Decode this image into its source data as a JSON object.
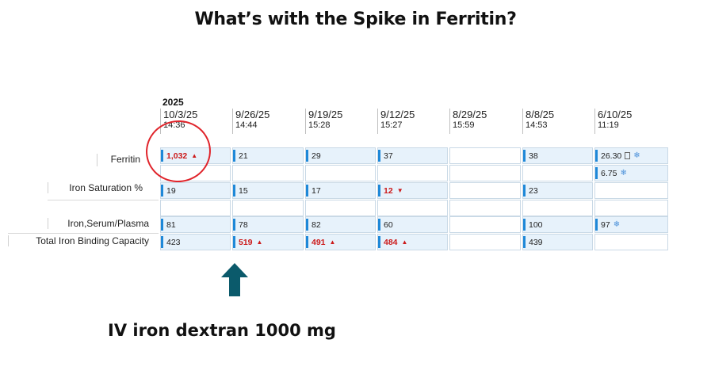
{
  "title": "What’s with the Spike in Ferritin?",
  "year": "2025",
  "columns": [
    {
      "date": "10/3/25",
      "time": "14:36"
    },
    {
      "date": "9/26/25",
      "time": "14:44"
    },
    {
      "date": "9/19/25",
      "time": "15:28"
    },
    {
      "date": "9/12/25",
      "time": "15:27"
    },
    {
      "date": "8/29/25",
      "time": "15:59"
    },
    {
      "date": "8/8/25",
      "time": "14:53"
    },
    {
      "date": "6/10/25",
      "time": "11:19"
    }
  ],
  "rows": {
    "ferritin": {
      "label": "Ferritin",
      "values": [
        "1,032",
        "21",
        "29",
        "37",
        "",
        "38",
        "26.30"
      ],
      "extra": "6.75"
    },
    "iron_saturation": {
      "label": "Iron Saturation %",
      "values": [
        "19",
        "15",
        "17",
        "12",
        "",
        "23",
        ""
      ]
    },
    "iron_serum": {
      "label": "Iron,Serum/Plasma",
      "values": [
        "81",
        "78",
        "82",
        "60",
        "",
        "100",
        "97"
      ]
    },
    "tibc": {
      "label": "Total Iron Binding Capacity",
      "values": [
        "423",
        "519",
        "491",
        "484",
        "",
        "439",
        ""
      ]
    }
  },
  "flags": {
    "high": "▲",
    "low": "▼",
    "snowflake": "❄"
  },
  "colors": {
    "abnormal": "#cc1a1a",
    "accent_bar": "#1e88d8",
    "cell_bg": "#e7f2fb",
    "circle": "#e0242b",
    "arrow": "#0b5a6b"
  },
  "icons": [
    "up-arrow-icon",
    "document-icon",
    "snowflake-icon"
  ],
  "caption": "IV iron dextran 1000 mg"
}
